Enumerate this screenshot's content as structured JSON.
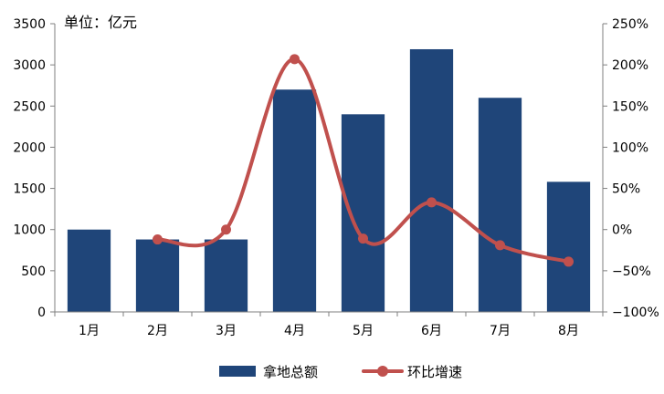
{
  "chart_data": {
    "type": "bar",
    "unit_label": "单位：亿元",
    "categories": [
      "1月",
      "2月",
      "3月",
      "4月",
      "5月",
      "6月",
      "7月",
      "8月"
    ],
    "series": [
      {
        "name": "拿地总额",
        "type": "bar",
        "axis": "left",
        "color": "#1f4579",
        "values": [
          1000,
          880,
          880,
          2700,
          2400,
          3190,
          2600,
          1580
        ]
      },
      {
        "name": "环比增速",
        "type": "line",
        "axis": "right",
        "color": "#c0504d",
        "values": [
          null,
          -12,
          0,
          207,
          -11,
          33,
          -19,
          -39
        ]
      }
    ],
    "y_left": {
      "min": 0,
      "max": 3500,
      "ticks": [
        0,
        500,
        1000,
        1500,
        2000,
        2500,
        3000,
        3500
      ],
      "tick_labels": [
        "0",
        "500",
        "1000",
        "1500",
        "2000",
        "2500",
        "3000",
        "3500"
      ]
    },
    "y_right": {
      "min": -100,
      "max": 250,
      "ticks": [
        -100,
        -50,
        0,
        50,
        100,
        150,
        200,
        250
      ],
      "tick_labels": [
        "−100%",
        "−50%",
        "0%",
        "50%",
        "100%",
        "150%",
        "200%",
        "250%"
      ]
    },
    "grid": false,
    "legend_position": "bottom"
  }
}
